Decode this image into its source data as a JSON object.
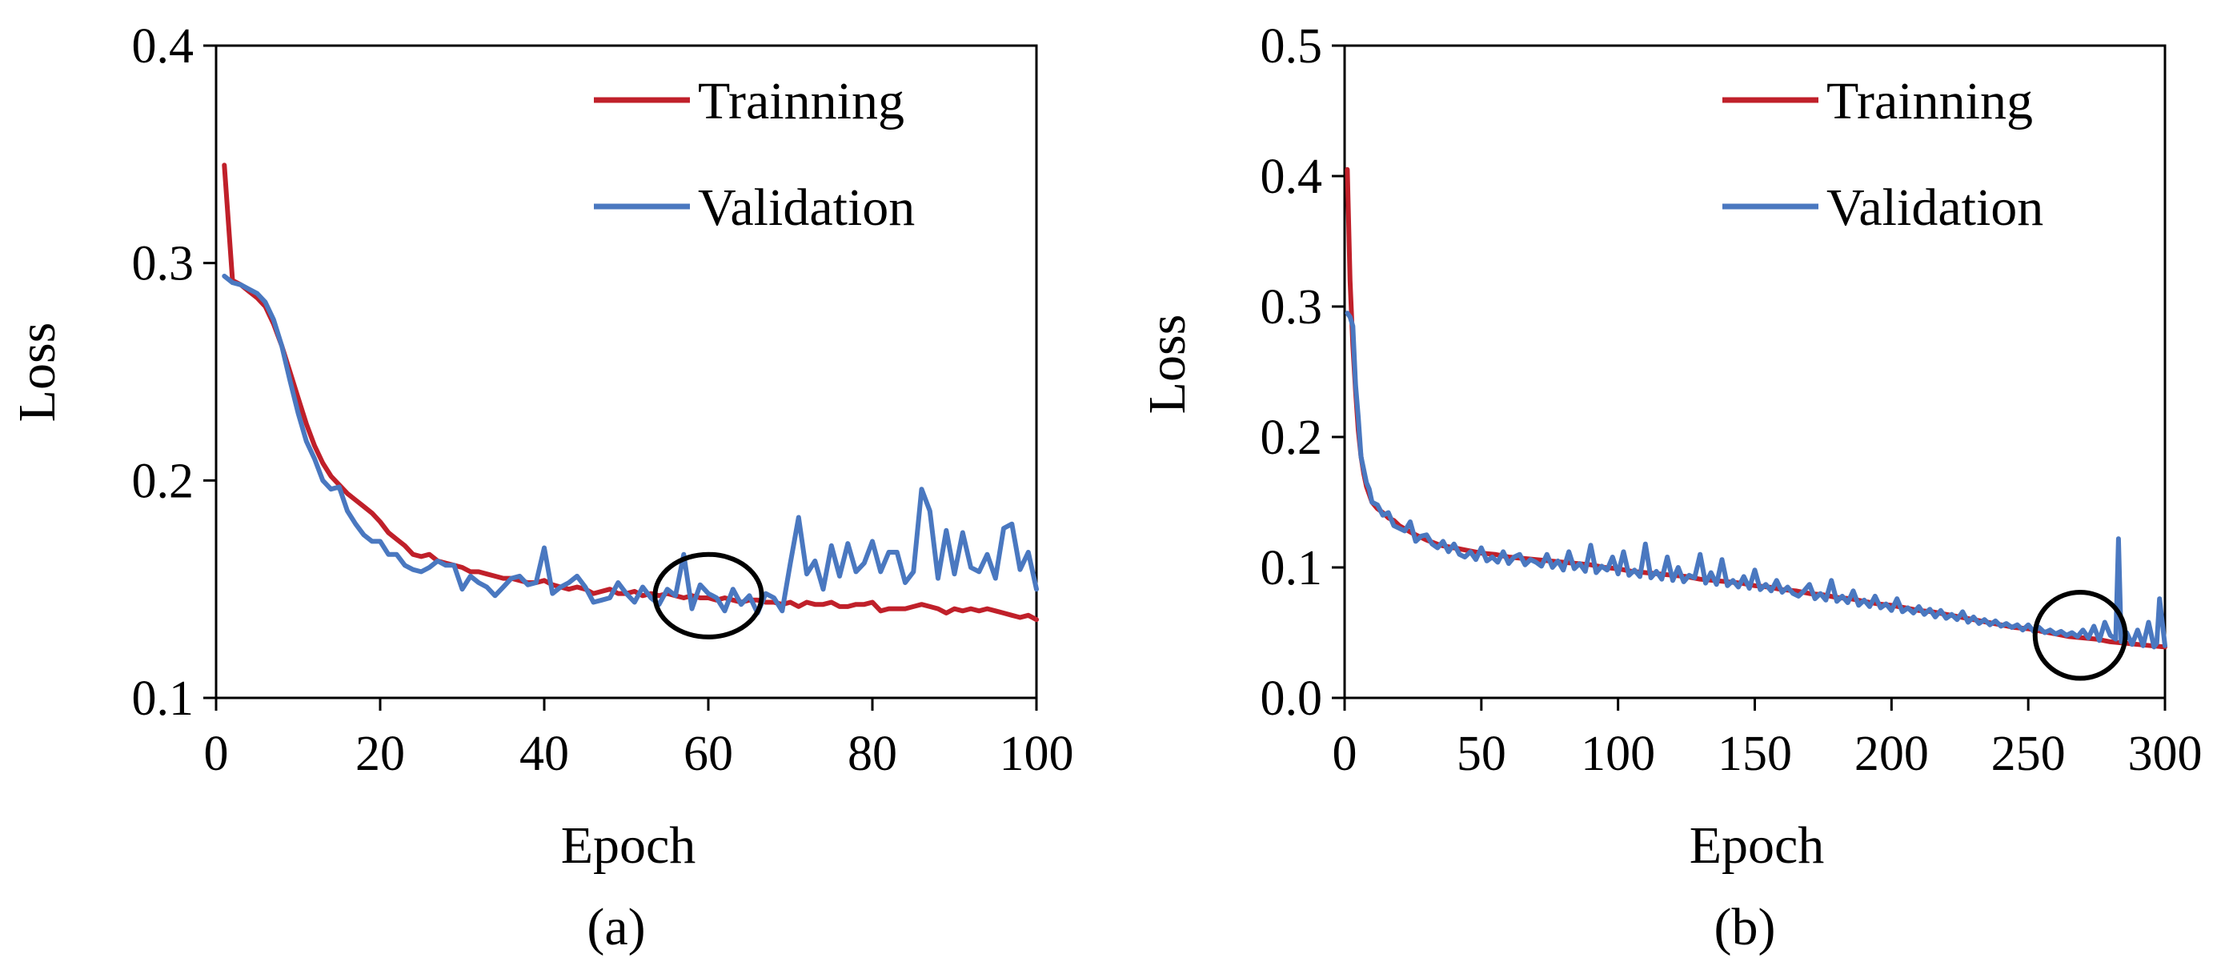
{
  "chart_data": [
    {
      "type": "line",
      "panel": "a",
      "caption": "(a)",
      "xlabel": "Epoch",
      "ylabel": "Loss",
      "xlim": [
        0,
        100
      ],
      "ylim": [
        0.1,
        0.4
      ],
      "xticks": [
        0,
        20,
        40,
        60,
        80,
        100
      ],
      "xtick_labels": [
        "0",
        "20",
        "40",
        "60",
        "80",
        "100"
      ],
      "yticks": [
        0.1,
        0.2,
        0.3,
        0.4
      ],
      "ytick_labels": [
        "0.1",
        "0.2",
        "0.3",
        "0.4"
      ],
      "legend_position": "top-right",
      "annotation": {
        "type": "circle",
        "x": 60,
        "y": 0.147,
        "rx_data": 6.5,
        "ry_data": 0.019
      },
      "series": [
        {
          "name": "Trainning",
          "color": "#c0202a",
          "x": [
            1,
            2,
            3,
            4,
            5,
            6,
            7,
            8,
            9,
            10,
            11,
            12,
            13,
            14,
            15,
            16,
            17,
            18,
            19,
            20,
            21,
            22,
            23,
            24,
            25,
            26,
            27,
            28,
            29,
            30,
            31,
            32,
            33,
            34,
            35,
            36,
            37,
            38,
            39,
            40,
            41,
            42,
            43,
            44,
            45,
            46,
            47,
            48,
            49,
            50,
            51,
            52,
            53,
            54,
            55,
            56,
            57,
            58,
            59,
            60,
            61,
            62,
            63,
            64,
            65,
            66,
            67,
            68,
            69,
            70,
            71,
            72,
            73,
            74,
            75,
            76,
            77,
            78,
            79,
            80,
            81,
            82,
            83,
            84,
            85,
            86,
            87,
            88,
            89,
            90,
            91,
            92,
            93,
            94,
            95,
            96,
            97,
            98,
            99,
            100
          ],
          "values": [
            0.345,
            0.292,
            0.29,
            0.287,
            0.284,
            0.28,
            0.272,
            0.262,
            0.25,
            0.238,
            0.226,
            0.216,
            0.208,
            0.202,
            0.198,
            0.194,
            0.191,
            0.188,
            0.185,
            0.181,
            0.176,
            0.173,
            0.17,
            0.166,
            0.165,
            0.166,
            0.163,
            0.162,
            0.161,
            0.16,
            0.158,
            0.158,
            0.157,
            0.156,
            0.155,
            0.155,
            0.154,
            0.153,
            0.153,
            0.154,
            0.152,
            0.151,
            0.15,
            0.151,
            0.15,
            0.148,
            0.149,
            0.15,
            0.148,
            0.148,
            0.149,
            0.147,
            0.148,
            0.147,
            0.148,
            0.147,
            0.146,
            0.147,
            0.146,
            0.146,
            0.145,
            0.146,
            0.145,
            0.144,
            0.145,
            0.145,
            0.144,
            0.144,
            0.143,
            0.144,
            0.142,
            0.144,
            0.143,
            0.143,
            0.144,
            0.142,
            0.142,
            0.143,
            0.143,
            0.144,
            0.14,
            0.141,
            0.141,
            0.141,
            0.142,
            0.143,
            0.142,
            0.141,
            0.139,
            0.141,
            0.14,
            0.141,
            0.14,
            0.141,
            0.14,
            0.139,
            0.138,
            0.137,
            0.138,
            0.136
          ]
        },
        {
          "name": "Validation",
          "color": "#4a78c0",
          "x": [
            1,
            2,
            3,
            4,
            5,
            6,
            7,
            8,
            9,
            10,
            11,
            12,
            13,
            14,
            15,
            16,
            17,
            18,
            19,
            20,
            21,
            22,
            23,
            24,
            25,
            26,
            27,
            28,
            29,
            30,
            31,
            32,
            33,
            34,
            35,
            36,
            37,
            38,
            39,
            40,
            41,
            42,
            43,
            44,
            45,
            46,
            47,
            48,
            49,
            50,
            51,
            52,
            53,
            54,
            55,
            56,
            57,
            58,
            59,
            60,
            61,
            62,
            63,
            64,
            65,
            66,
            67,
            68,
            69,
            70,
            71,
            72,
            73,
            74,
            75,
            76,
            77,
            78,
            79,
            80,
            81,
            82,
            83,
            84,
            85,
            86,
            87,
            88,
            89,
            90,
            91,
            92,
            93,
            94,
            95,
            96,
            97,
            98,
            99,
            100
          ],
          "values": [
            0.294,
            0.291,
            0.29,
            0.288,
            0.286,
            0.282,
            0.274,
            0.262,
            0.246,
            0.231,
            0.218,
            0.21,
            0.2,
            0.196,
            0.197,
            0.186,
            0.18,
            0.175,
            0.172,
            0.172,
            0.166,
            0.166,
            0.161,
            0.159,
            0.158,
            0.16,
            0.163,
            0.161,
            0.161,
            0.15,
            0.156,
            0.153,
            0.151,
            0.147,
            0.151,
            0.155,
            0.156,
            0.152,
            0.153,
            0.169,
            0.148,
            0.151,
            0.153,
            0.156,
            0.151,
            0.144,
            0.145,
            0.146,
            0.153,
            0.148,
            0.144,
            0.151,
            0.146,
            0.143,
            0.15,
            0.147,
            0.166,
            0.141,
            0.152,
            0.148,
            0.146,
            0.14,
            0.15,
            0.143,
            0.147,
            0.139,
            0.148,
            0.146,
            0.14,
            0.162,
            0.183,
            0.157,
            0.163,
            0.15,
            0.17,
            0.156,
            0.171,
            0.158,
            0.162,
            0.172,
            0.158,
            0.167,
            0.167,
            0.153,
            0.158,
            0.196,
            0.186,
            0.155,
            0.177,
            0.157,
            0.176,
            0.16,
            0.158,
            0.166,
            0.155,
            0.178,
            0.18,
            0.159,
            0.167,
            0.15
          ]
        }
      ]
    },
    {
      "type": "line",
      "panel": "b",
      "caption": "(b)",
      "xlabel": "Epoch",
      "ylabel": "Loss",
      "xlim": [
        0,
        300
      ],
      "ylim": [
        0.0,
        0.5
      ],
      "xticks": [
        0,
        50,
        100,
        150,
        200,
        250,
        300
      ],
      "xtick_labels": [
        "0",
        "50",
        "100",
        "150",
        "200",
        "250",
        "300"
      ],
      "yticks": [
        0.0,
        0.1,
        0.2,
        0.3,
        0.4,
        0.5
      ],
      "ytick_labels": [
        "0.0",
        "0.1",
        "0.2",
        "0.3",
        "0.4",
        "0.5"
      ],
      "legend_position": "top-right",
      "annotation": {
        "type": "circle",
        "x": 269,
        "y": 0.048,
        "rx_data": 16.5,
        "ry_data": 0.033
      },
      "series": [
        {
          "name": "Trainning",
          "color": "#c0202a",
          "x": [
            1,
            2,
            3,
            4,
            5,
            6,
            7,
            8,
            9,
            10,
            12,
            14,
            16,
            18,
            20,
            25,
            30,
            35,
            40,
            45,
            50,
            55,
            60,
            65,
            70,
            75,
            80,
            85,
            90,
            95,
            100,
            105,
            110,
            115,
            120,
            125,
            130,
            135,
            140,
            145,
            150,
            155,
            160,
            165,
            170,
            175,
            180,
            185,
            190,
            195,
            200,
            205,
            210,
            215,
            220,
            225,
            230,
            235,
            240,
            245,
            250,
            255,
            260,
            265,
            270,
            275,
            280,
            285,
            290,
            295,
            300
          ],
          "values": [
            0.405,
            0.32,
            0.27,
            0.235,
            0.205,
            0.185,
            0.172,
            0.162,
            0.156,
            0.15,
            0.145,
            0.142,
            0.138,
            0.136,
            0.132,
            0.126,
            0.121,
            0.117,
            0.115,
            0.113,
            0.111,
            0.11,
            0.108,
            0.107,
            0.106,
            0.105,
            0.104,
            0.103,
            0.102,
            0.1,
            0.099,
            0.097,
            0.096,
            0.095,
            0.094,
            0.093,
            0.091,
            0.09,
            0.089,
            0.088,
            0.086,
            0.085,
            0.083,
            0.082,
            0.08,
            0.079,
            0.077,
            0.076,
            0.074,
            0.072,
            0.071,
            0.069,
            0.067,
            0.066,
            0.064,
            0.062,
            0.06,
            0.058,
            0.056,
            0.054,
            0.053,
            0.051,
            0.049,
            0.047,
            0.046,
            0.045,
            0.043,
            0.042,
            0.041,
            0.04,
            0.039
          ]
        },
        {
          "name": "Validation",
          "color": "#4a78c0",
          "x": [
            1,
            2,
            3,
            4,
            5,
            6,
            7,
            8,
            9,
            10,
            12,
            14,
            16,
            18,
            20,
            22,
            24,
            26,
            28,
            30,
            32,
            34,
            36,
            38,
            40,
            42,
            44,
            46,
            48,
            50,
            52,
            54,
            56,
            58,
            60,
            62,
            64,
            66,
            68,
            70,
            72,
            74,
            76,
            78,
            80,
            82,
            84,
            86,
            88,
            90,
            92,
            94,
            96,
            98,
            100,
            102,
            104,
            106,
            108,
            110,
            112,
            114,
            116,
            118,
            120,
            122,
            124,
            126,
            128,
            130,
            132,
            134,
            136,
            138,
            140,
            142,
            144,
            146,
            148,
            150,
            152,
            154,
            156,
            158,
            160,
            162,
            164,
            166,
            168,
            170,
            172,
            174,
            176,
            178,
            180,
            182,
            184,
            186,
            188,
            190,
            192,
            194,
            196,
            198,
            200,
            202,
            204,
            206,
            208,
            210,
            212,
            214,
            216,
            218,
            220,
            222,
            224,
            226,
            228,
            230,
            232,
            234,
            236,
            238,
            240,
            242,
            244,
            246,
            248,
            250,
            252,
            254,
            256,
            258,
            260,
            262,
            264,
            266,
            268,
            270,
            272,
            274,
            276,
            278,
            280,
            282,
            283,
            284,
            286,
            288,
            290,
            292,
            294,
            296,
            297,
            298,
            300
          ],
          "values": [
            0.295,
            0.292,
            0.285,
            0.24,
            0.215,
            0.185,
            0.175,
            0.165,
            0.16,
            0.15,
            0.148,
            0.14,
            0.142,
            0.132,
            0.13,
            0.128,
            0.135,
            0.12,
            0.124,
            0.125,
            0.118,
            0.115,
            0.12,
            0.112,
            0.118,
            0.11,
            0.108,
            0.112,
            0.106,
            0.115,
            0.105,
            0.108,
            0.104,
            0.112,
            0.103,
            0.108,
            0.11,
            0.102,
            0.106,
            0.104,
            0.101,
            0.11,
            0.1,
            0.105,
            0.098,
            0.112,
            0.099,
            0.103,
            0.097,
            0.117,
            0.096,
            0.101,
            0.098,
            0.108,
            0.095,
            0.112,
            0.094,
            0.098,
            0.093,
            0.118,
            0.092,
            0.097,
            0.091,
            0.108,
            0.09,
            0.1,
            0.089,
            0.094,
            0.092,
            0.11,
            0.088,
            0.096,
            0.087,
            0.106,
            0.086,
            0.09,
            0.085,
            0.093,
            0.084,
            0.098,
            0.083,
            0.087,
            0.082,
            0.09,
            0.081,
            0.085,
            0.08,
            0.078,
            0.082,
            0.087,
            0.076,
            0.08,
            0.075,
            0.09,
            0.074,
            0.078,
            0.073,
            0.082,
            0.071,
            0.075,
            0.07,
            0.078,
            0.069,
            0.072,
            0.067,
            0.076,
            0.066,
            0.069,
            0.065,
            0.07,
            0.064,
            0.068,
            0.062,
            0.067,
            0.061,
            0.064,
            0.06,
            0.066,
            0.058,
            0.062,
            0.057,
            0.06,
            0.056,
            0.059,
            0.055,
            0.057,
            0.054,
            0.056,
            0.052,
            0.056,
            0.051,
            0.054,
            0.05,
            0.052,
            0.049,
            0.051,
            0.048,
            0.05,
            0.047,
            0.052,
            0.046,
            0.055,
            0.044,
            0.058,
            0.048,
            0.045,
            0.122,
            0.043,
            0.05,
            0.041,
            0.052,
            0.04,
            0.058,
            0.039,
            0.042,
            0.076,
            0.04
          ]
        }
      ]
    }
  ]
}
